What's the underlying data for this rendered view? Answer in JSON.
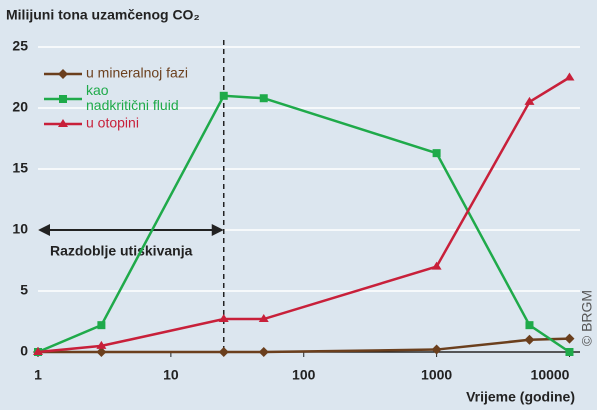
{
  "chart_data": {
    "type": "line",
    "title": "Milijuni tona uzamčenog CO₂",
    "x_label": "Vrijeme (godine)",
    "credit": "© BRGM",
    "x": [
      1,
      3,
      25,
      50,
      1000,
      5000,
      10000
    ],
    "series": [
      {
        "name": "u mineralnoj fazi",
        "color": "#6b3f1d",
        "marker": "diamond",
        "values": [
          0,
          0,
          0,
          0,
          0.2,
          1,
          1.1
        ]
      },
      {
        "name": "kao nadkritični fluid",
        "color": "#1faa4a",
        "marker": "square",
        "values": [
          0,
          2.2,
          21,
          20.8,
          16.3,
          2.2,
          0
        ]
      },
      {
        "name": "u otopini",
        "color": "#c8203a",
        "marker": "triangle",
        "values": [
          0,
          0.5,
          2.7,
          2.7,
          7,
          20.5,
          22.5
        ]
      }
    ],
    "period": {
      "label": "Razdoblje utiskivanja",
      "start": 1,
      "end": 25,
      "level": 10
    },
    "xscale": "log",
    "xlim": [
      1,
      12000
    ],
    "xticks": [
      1,
      10,
      100,
      1000,
      10000
    ],
    "ylim": [
      0,
      25
    ],
    "yticks": [
      0,
      5,
      10,
      15,
      20,
      25
    ],
    "grid": true,
    "legend": "upper left"
  }
}
